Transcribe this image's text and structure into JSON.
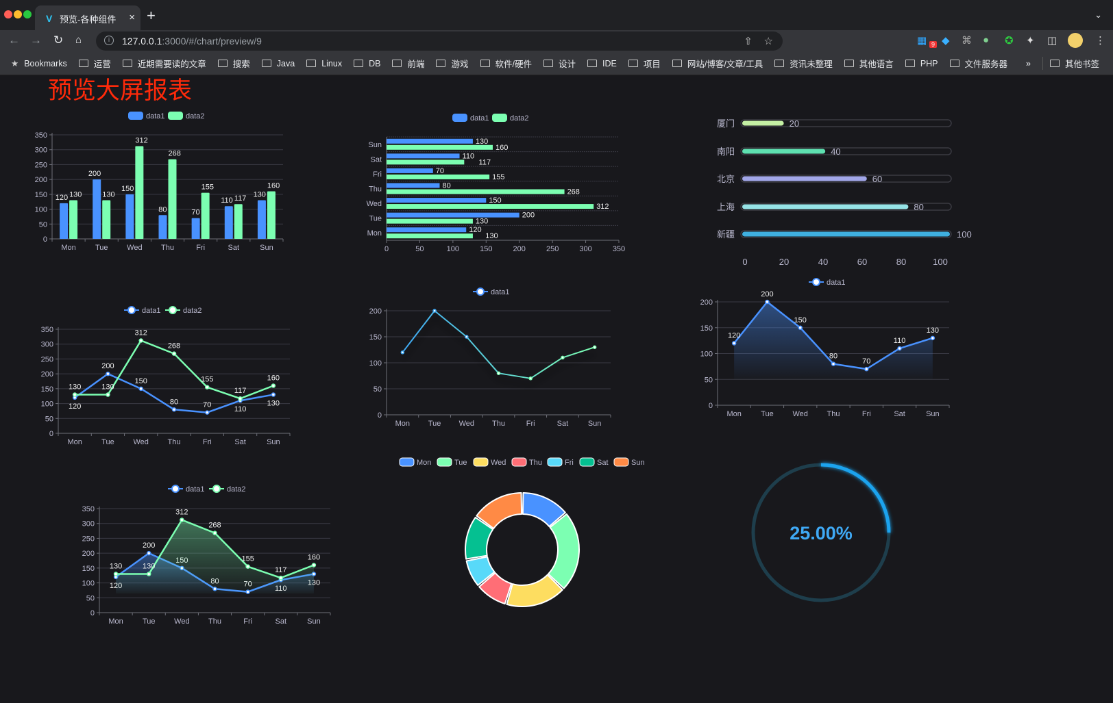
{
  "browser": {
    "tab_title": "预览-各种组件",
    "tab_close": "×",
    "new_tab": "+",
    "url_host": "127.0.0.1",
    "url_rest": ":3000/#/chart/preview/9",
    "extension_badge": "9",
    "bookmarks_label": "Bookmarks",
    "bookmarks": [
      "运营",
      "近期需要读的文章",
      "搜索",
      "Java",
      "Linux",
      "DB",
      "前端",
      "游戏",
      "软件/硬件",
      "设计",
      "IDE",
      "项目",
      "网站/博客/文章/工具",
      "资讯未整理",
      "其他语言",
      "PHP",
      "文件服务器"
    ],
    "more": "»",
    "other_bookmarks": "其他书签"
  },
  "page": {
    "title": "预览大屏报表",
    "title_color": "#ff2a0a"
  },
  "colors": {
    "data1": "#4992ff",
    "data2": "#7cffb2",
    "background": "#18181c"
  },
  "chart_data": [
    {
      "type": "bar",
      "legend": [
        "data1",
        "data2"
      ],
      "legend_position": "top",
      "categories": [
        "Mon",
        "Tue",
        "Wed",
        "Thu",
        "Fri",
        "Sat",
        "Sun"
      ],
      "series": [
        {
          "name": "data1",
          "values": [
            120,
            200,
            150,
            80,
            70,
            110,
            130
          ]
        },
        {
          "name": "data2",
          "values": [
            130,
            130,
            312,
            268,
            155,
            117,
            160
          ]
        }
      ],
      "ylim": [
        0,
        350
      ],
      "yticks": [
        0,
        50,
        100,
        150,
        200,
        250,
        300,
        350
      ],
      "grid": true,
      "data_labels": true
    },
    {
      "type": "bar",
      "orientation": "horizontal",
      "legend": [
        "data1",
        "data2"
      ],
      "legend_position": "top",
      "categories": [
        "Mon",
        "Tue",
        "Wed",
        "Thu",
        "Fri",
        "Sat",
        "Sun"
      ],
      "series": [
        {
          "name": "data1",
          "values": [
            120,
            200,
            150,
            80,
            70,
            110,
            130
          ]
        },
        {
          "name": "data2",
          "values": [
            130,
            130,
            312,
            268,
            155,
            117,
            160
          ]
        }
      ],
      "xlim": [
        0,
        350
      ],
      "xticks": [
        0,
        50,
        100,
        150,
        200,
        250,
        300,
        350
      ],
      "grid": true,
      "data_labels": true
    },
    {
      "type": "bar",
      "orientation": "horizontal",
      "style": "progress",
      "categories": [
        "厦门",
        "南阳",
        "北京",
        "上海",
        "新疆"
      ],
      "values": [
        20,
        40,
        60,
        80,
        100
      ],
      "bar_colors": [
        "#c5f0a4",
        "#5ee0b0",
        "#a1a6e8",
        "#96e3e6",
        "#3fb0e0"
      ],
      "xlim": [
        0,
        100
      ],
      "xticks": [
        0,
        20,
        40,
        60,
        80,
        100
      ]
    },
    {
      "type": "line",
      "legend": [
        "data1",
        "data2"
      ],
      "legend_position": "top",
      "categories": [
        "Mon",
        "Tue",
        "Wed",
        "Thu",
        "Fri",
        "Sat",
        "Sun"
      ],
      "series": [
        {
          "name": "data1",
          "values": [
            120,
            200,
            150,
            80,
            70,
            110,
            130
          ]
        },
        {
          "name": "data2",
          "values": [
            130,
            130,
            312,
            268,
            155,
            117,
            160
          ]
        }
      ],
      "ylim": [
        0,
        350
      ],
      "yticks": [
        0,
        50,
        100,
        150,
        200,
        250,
        300,
        350
      ],
      "grid": true,
      "data_labels": true
    },
    {
      "type": "line",
      "legend": [
        "data1"
      ],
      "legend_position": "top",
      "gradient_line": [
        "#3fa9f5",
        "#7cffb2"
      ],
      "categories": [
        "Mon",
        "Tue",
        "Wed",
        "Thu",
        "Fri",
        "Sat",
        "Sun"
      ],
      "series": [
        {
          "name": "data1",
          "values": [
            120,
            200,
            150,
            80,
            70,
            110,
            130
          ]
        }
      ],
      "ylim": [
        0,
        200
      ],
      "yticks": [
        0,
        50,
        100,
        150,
        200
      ],
      "grid": true,
      "data_labels": false
    },
    {
      "type": "area",
      "legend": [
        "data1"
      ],
      "legend_position": "top",
      "categories": [
        "Mon",
        "Tue",
        "Wed",
        "Thu",
        "Fri",
        "Sat",
        "Sun"
      ],
      "series": [
        {
          "name": "data1",
          "values": [
            120,
            200,
            150,
            80,
            70,
            110,
            130
          ]
        }
      ],
      "ylim": [
        0,
        200
      ],
      "yticks": [
        0,
        50,
        100,
        150,
        200
      ],
      "grid": true,
      "data_labels": true
    },
    {
      "type": "area",
      "legend": [
        "data1",
        "data2"
      ],
      "legend_position": "top",
      "categories": [
        "Mon",
        "Tue",
        "Wed",
        "Thu",
        "Fri",
        "Sat",
        "Sun"
      ],
      "series": [
        {
          "name": "data1",
          "values": [
            120,
            200,
            150,
            80,
            70,
            110,
            130
          ]
        },
        {
          "name": "data2",
          "values": [
            130,
            130,
            312,
            268,
            155,
            117,
            160
          ]
        }
      ],
      "ylim": [
        0,
        350
      ],
      "yticks": [
        0,
        50,
        100,
        150,
        200,
        250,
        300,
        350
      ],
      "grid": true,
      "data_labels": true
    },
    {
      "type": "pie",
      "style": "donut",
      "legend_position": "top",
      "categories": [
        "Mon",
        "Tue",
        "Wed",
        "Thu",
        "Fri",
        "Sat",
        "Sun"
      ],
      "values": [
        120,
        200,
        150,
        80,
        70,
        110,
        130
      ],
      "slice_colors": [
        "#4992ff",
        "#7cffb2",
        "#fddd60",
        "#ff6e76",
        "#58d9f9",
        "#05c091",
        "#ff8a45"
      ]
    },
    {
      "type": "gauge",
      "value": 0.25,
      "label": "25.00%",
      "arc_color": "#1aa3ee",
      "track_color": "#1e3e4c"
    }
  ]
}
